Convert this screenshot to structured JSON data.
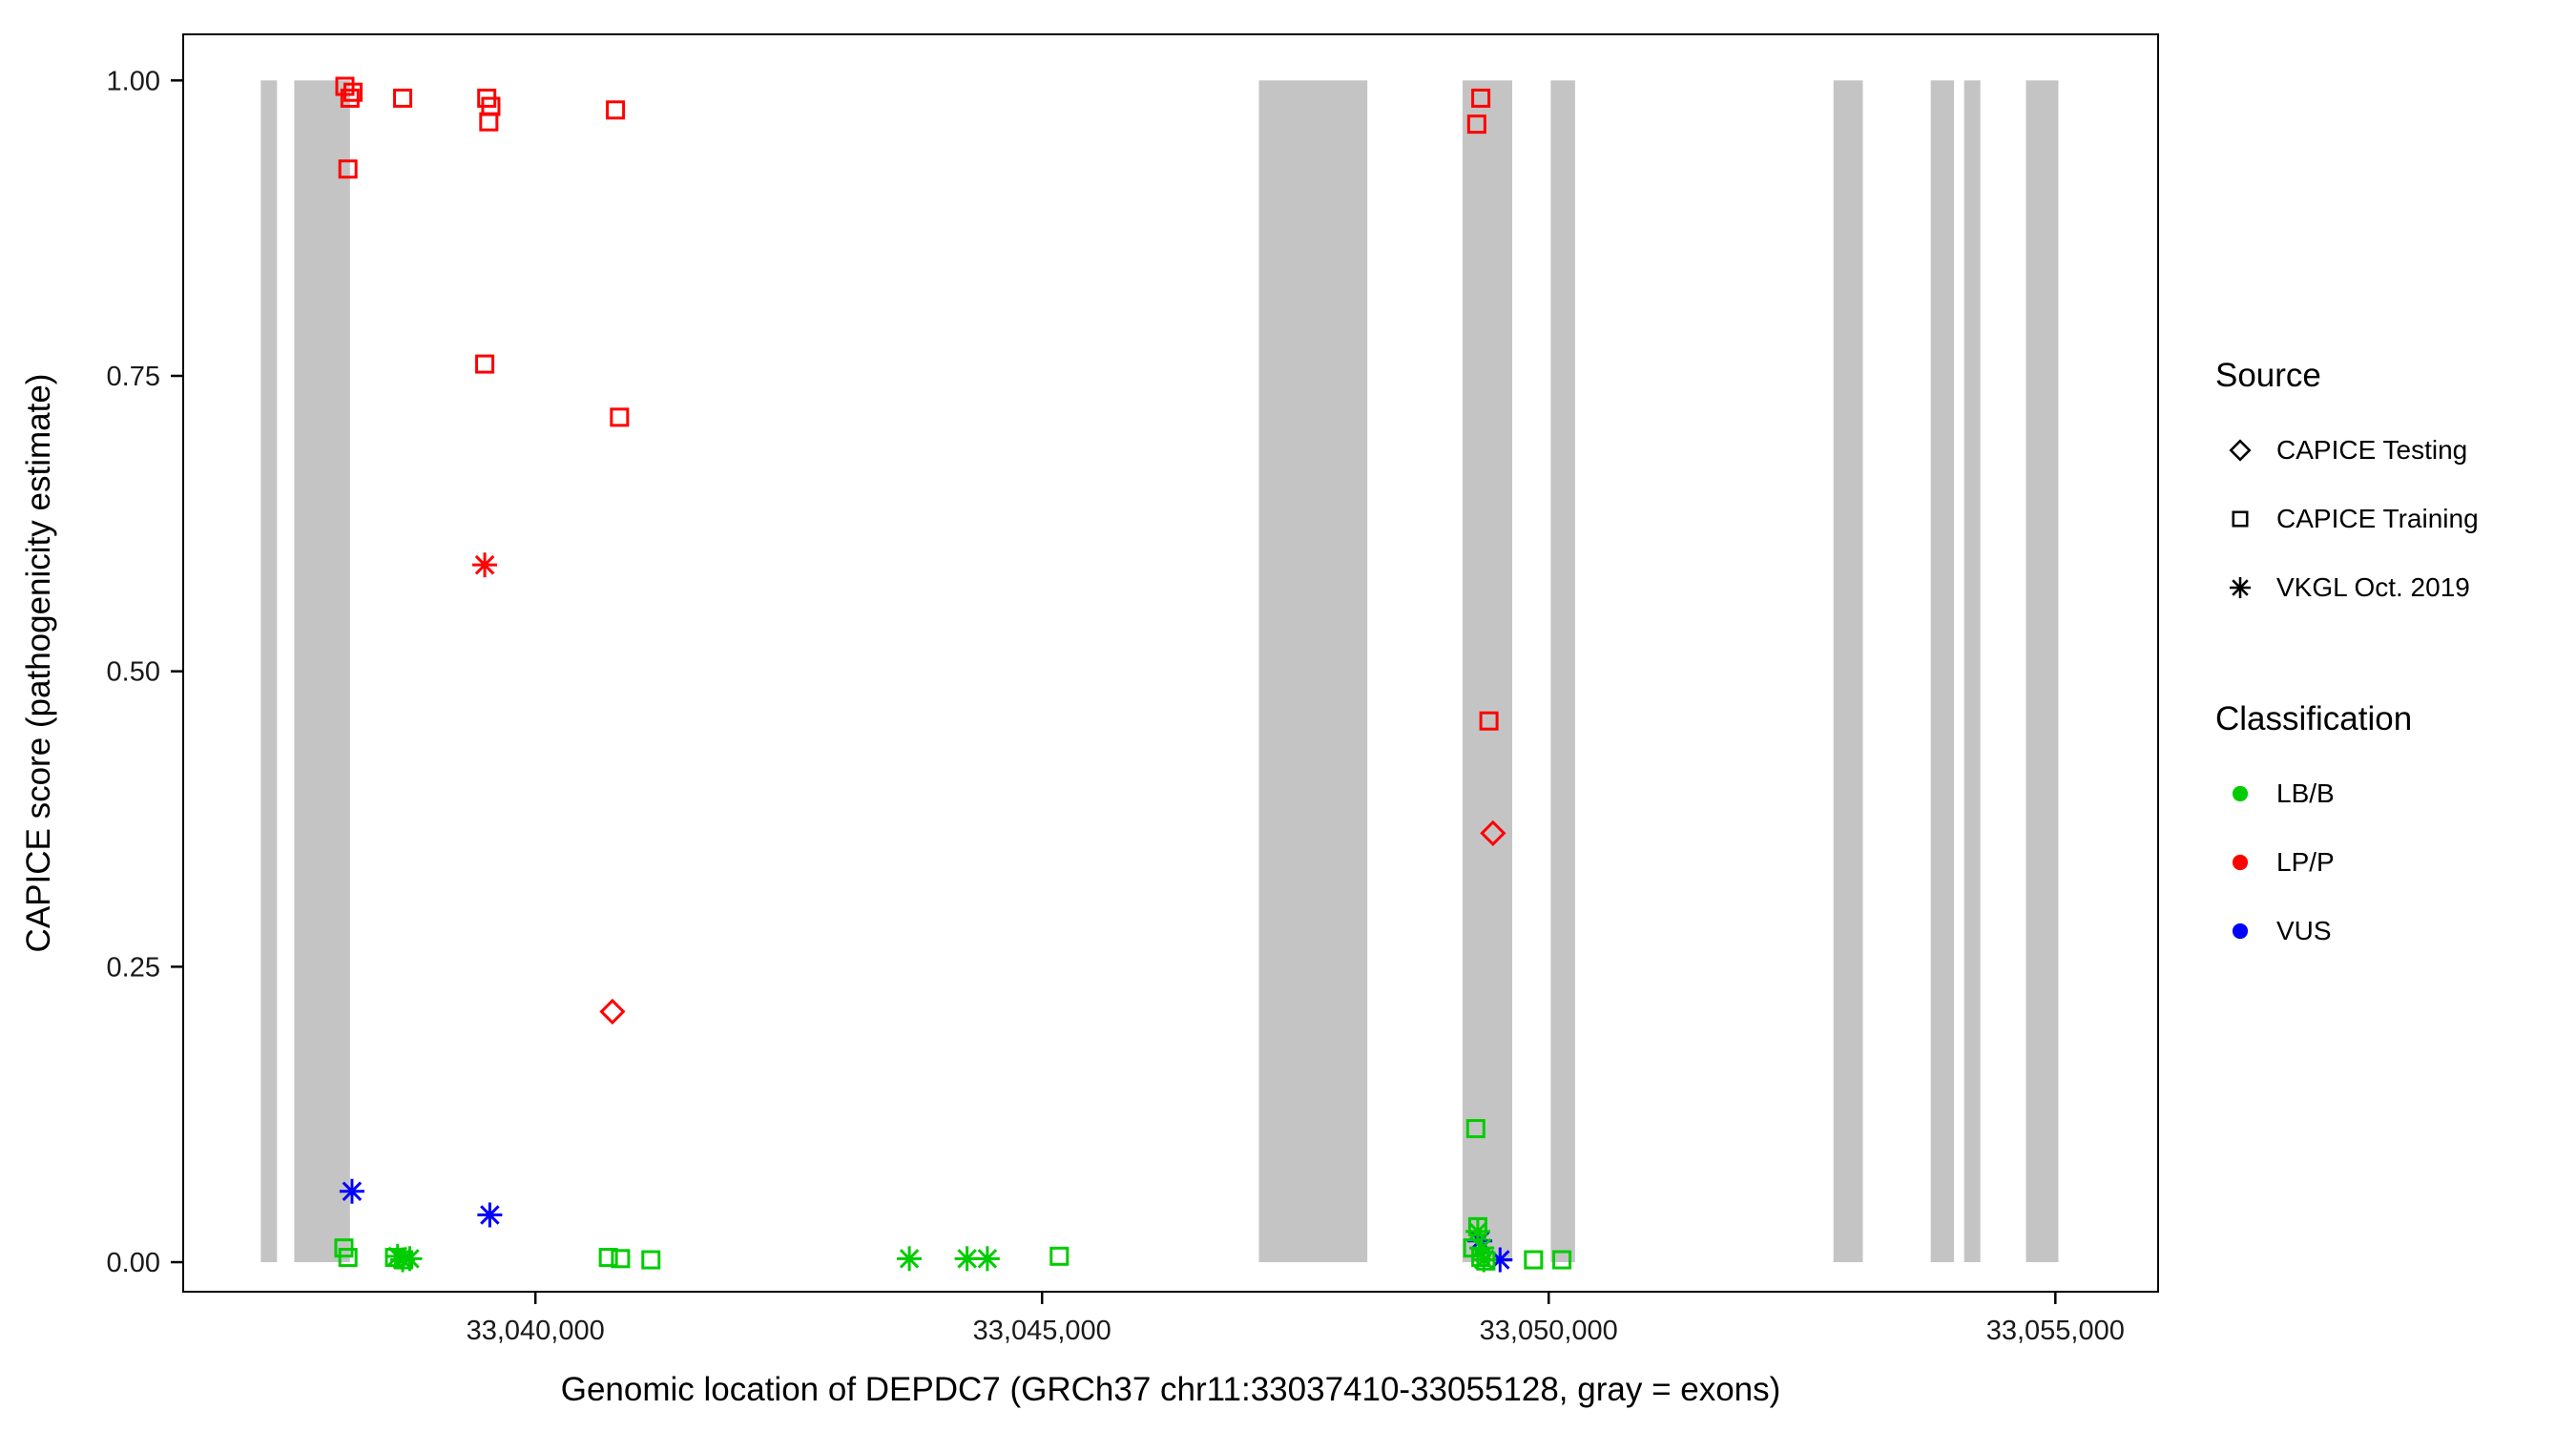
{
  "figure": {
    "background": "#FFFFFF"
  },
  "legend": {
    "source": {
      "title": "Source",
      "items": [
        {
          "label": "CAPICE Testing",
          "marker": "diamond"
        },
        {
          "label": "CAPICE Training",
          "marker": "square"
        },
        {
          "label": "VKGL Oct. 2019",
          "marker": "asterisk"
        }
      ]
    },
    "classification": {
      "title": "Classification",
      "items": [
        {
          "label": "LB/B",
          "color": "#00CC00"
        },
        {
          "label": "LP/P",
          "color": "#FF0000"
        },
        {
          "label": "VUS",
          "color": "#0000FF"
        }
      ]
    }
  },
  "chart_data": {
    "type": "scatter",
    "title": "",
    "xlabel": "Genomic location of DEPDC7 (GRCh37 chr11:33037410-33055128, gray = exons)",
    "ylabel": "CAPICE score (pathogenicity estimate)",
    "xlim": [
      33036524,
      33056014
    ],
    "ylim": [
      -0.025,
      1.039
    ],
    "grid": false,
    "legend_position": "right",
    "x_ticks": [
      {
        "value": 33040000,
        "label": "33,040,000"
      },
      {
        "value": 33045000,
        "label": "33,045,000"
      },
      {
        "value": 33050000,
        "label": "33,050,000"
      },
      {
        "value": 33055000,
        "label": "33,055,000"
      }
    ],
    "y_ticks": [
      {
        "value": 0.0,
        "label": "0.00"
      },
      {
        "value": 0.25,
        "label": "0.25"
      },
      {
        "value": 0.5,
        "label": "0.50"
      },
      {
        "value": 0.75,
        "label": "0.75"
      },
      {
        "value": 1.0,
        "label": "1.00"
      }
    ],
    "exon_color": "#C4C4C4",
    "exons": [
      [
        33037290,
        33037450
      ],
      [
        33037620,
        33038170
      ],
      [
        33047140,
        33048210
      ],
      [
        33049150,
        33049640
      ],
      [
        33050020,
        33050260
      ],
      [
        33052810,
        33053100
      ],
      [
        33053770,
        33054000
      ],
      [
        33054100,
        33054260
      ],
      [
        33054710,
        33055030
      ]
    ],
    "series": [
      {
        "name": "CAPICE Training / LP/P",
        "source": "CAPICE Training",
        "classification": "LP/P",
        "shape": "square",
        "color": "#FF0000",
        "points": [
          [
            33038120,
            0.995
          ],
          [
            33038200,
            0.99
          ],
          [
            33038170,
            0.985
          ],
          [
            33038150,
            0.925
          ],
          [
            33038690,
            0.985
          ],
          [
            33039520,
            0.985
          ],
          [
            33039560,
            0.978
          ],
          [
            33039540,
            0.965
          ],
          [
            33039500,
            0.76
          ],
          [
            33040790,
            0.975
          ],
          [
            33040830,
            0.715
          ],
          [
            33049330,
            0.985
          ],
          [
            33049290,
            0.963
          ],
          [
            33049410,
            0.458
          ]
        ]
      },
      {
        "name": "CAPICE Testing / LP/P",
        "source": "CAPICE Testing",
        "classification": "LP/P",
        "shape": "diamond",
        "color": "#FF0000",
        "points": [
          [
            33040760,
            0.212
          ],
          [
            33049450,
            0.363
          ]
        ]
      },
      {
        "name": "VKGL Oct. 2019 / LP/P",
        "source": "VKGL Oct. 2019",
        "classification": "LP/P",
        "shape": "asterisk",
        "color": "#FF0000",
        "points": [
          [
            33039500,
            0.59
          ]
        ]
      },
      {
        "name": "VKGL Oct. 2019 / VUS",
        "source": "VKGL Oct. 2019",
        "classification": "VUS",
        "shape": "asterisk",
        "color": "#0000FF",
        "points": [
          [
            33038190,
            0.06
          ],
          [
            33039550,
            0.04
          ],
          [
            33049320,
            0.018
          ],
          [
            33049520,
            0.002
          ]
        ]
      },
      {
        "name": "CAPICE Training / LB/B",
        "source": "CAPICE Training",
        "classification": "LB/B",
        "shape": "square",
        "color": "#00CC00",
        "points": [
          [
            33038110,
            0.012
          ],
          [
            33038150,
            0.004
          ],
          [
            33038610,
            0.004
          ],
          [
            33038700,
            0.002
          ],
          [
            33040720,
            0.004
          ],
          [
            33040840,
            0.003
          ],
          [
            33041140,
            0.002
          ],
          [
            33045170,
            0.005
          ],
          [
            33049280,
            0.113
          ],
          [
            33049300,
            0.03
          ],
          [
            33049250,
            0.012
          ],
          [
            33049330,
            0.004
          ],
          [
            33049380,
            0.001
          ],
          [
            33049850,
            0.002
          ],
          [
            33050130,
            0.002
          ]
        ]
      },
      {
        "name": "VKGL Oct. 2019 / LB/B",
        "source": "VKGL Oct. 2019",
        "classification": "LB/B",
        "shape": "asterisk",
        "color": "#00CC00",
        "points": [
          [
            33038640,
            0.005
          ],
          [
            33038690,
            0.002
          ],
          [
            33038760,
            0.003
          ],
          [
            33043690,
            0.003
          ],
          [
            33044260,
            0.003
          ],
          [
            33044460,
            0.003
          ],
          [
            33049300,
            0.026
          ],
          [
            33049340,
            0.012
          ],
          [
            33049360,
            0.002
          ]
        ]
      }
    ]
  }
}
